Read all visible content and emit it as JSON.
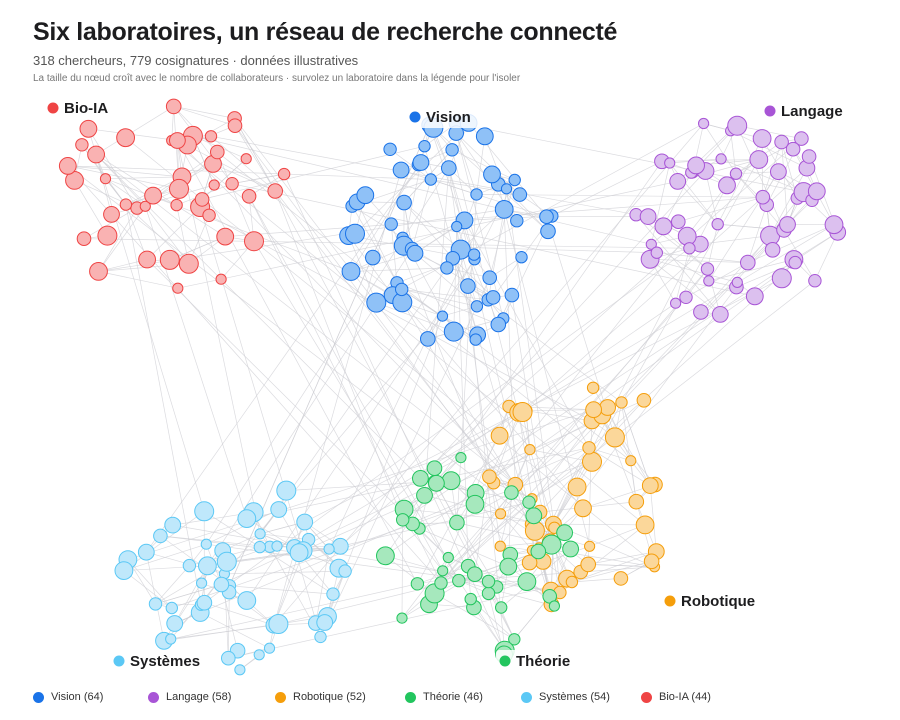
{
  "header": {
    "title": "Six laboratoires, un réseau de recherche connecté",
    "subtitle": "318 chercheurs, 779 cosignatures · données illustratives",
    "note": "La taille du nœud croît avec le nombre de collaborateurs · survolez un laboratoire dans la légende pour l'isoler"
  },
  "chart_data": {
    "type": "network",
    "total_nodes": 318,
    "total_edges": 779,
    "labs": [
      {
        "name": "Vision",
        "count": 64,
        "color": "#1a73e8",
        "fill": "#8fc1f7"
      },
      {
        "name": "Langage",
        "count": 58,
        "color": "#a855d6",
        "fill": "#dcc0ef"
      },
      {
        "name": "Robotique",
        "count": 52,
        "color": "#f59e0b",
        "fill": "#fbd79a"
      },
      {
        "name": "Théorie",
        "count": 46,
        "color": "#22c55e",
        "fill": "#a6e8bd"
      },
      {
        "name": "Systèmes",
        "count": 54,
        "color": "#5bc8f5",
        "fill": "#bfe8fb"
      },
      {
        "name": "Bio-IA",
        "count": 44,
        "color": "#ef4444",
        "fill": "#f9b2b2"
      }
    ],
    "legend_labels": [
      "Vision (64)",
      "Langage (58)",
      "Robotique (52)",
      "Théorie (46)",
      "Systèmes (54)",
      "Bio-IA (44)"
    ]
  }
}
